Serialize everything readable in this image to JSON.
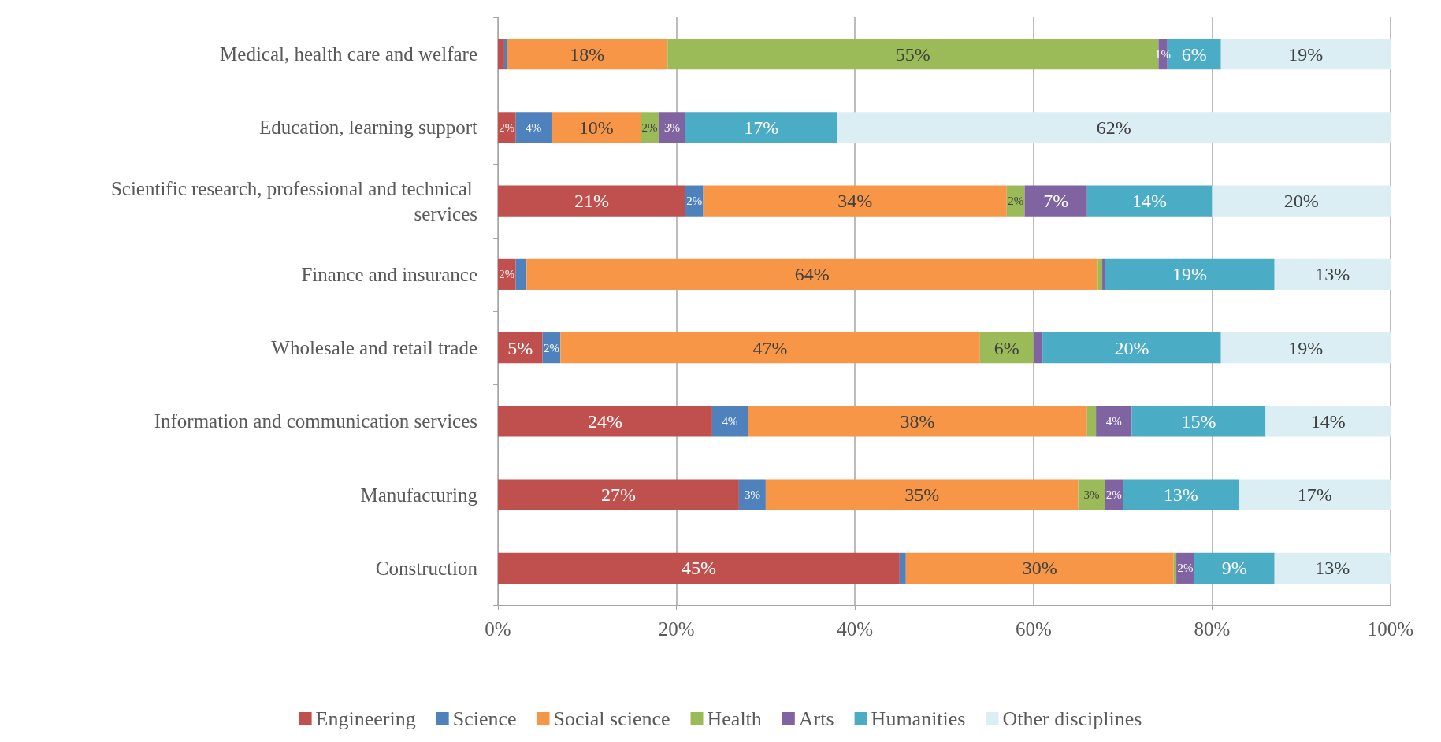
{
  "chart_data": {
    "type": "bar",
    "orientation": "horizontal",
    "stacked": true,
    "categories": [
      "Medical, health care and welfare",
      "Education, learning support",
      "Scientific research, professional and technical services",
      "Finance and insurance",
      "Wholesale and retail trade",
      "Information and communication services",
      "Manufacturing",
      "Construction"
    ],
    "series": [
      {
        "name": "Engineering",
        "color": "#c0504d",
        "values": [
          0.7,
          2,
          21,
          2,
          5,
          24,
          27,
          45
        ],
        "value_labels": [
          null,
          "2%",
          "21%",
          "2%",
          "5%",
          "24%",
          "27%",
          "45%"
        ]
      },
      {
        "name": "Science",
        "color": "#4f81bd",
        "values": [
          0.3,
          4,
          2,
          1.2,
          2,
          4,
          3,
          0.7
        ],
        "value_labels": [
          null,
          "4%",
          "2%",
          null,
          "2%",
          "4%",
          "3%",
          null
        ]
      },
      {
        "name": "Social science",
        "color": "#f79646",
        "values": [
          18,
          10,
          34,
          64,
          47,
          38,
          35,
          30
        ],
        "value_labels": [
          "18%",
          "10%",
          "34%",
          "64%",
          "47%",
          "38%",
          "35%",
          "30%"
        ]
      },
      {
        "name": "Health",
        "color": "#9bbb59",
        "values": [
          55,
          2,
          2,
          0.5,
          6,
          1,
          3,
          0.3
        ],
        "value_labels": [
          "55%",
          "2%",
          "2%",
          null,
          "6%",
          null,
          "3%",
          null
        ]
      },
      {
        "name": "Arts",
        "color": "#8064a2",
        "values": [
          1,
          3,
          7,
          0.3,
          1,
          4,
          2,
          2
        ],
        "value_labels": [
          "1%",
          "3%",
          "7%",
          null,
          null,
          "4%",
          "2%",
          "2%"
        ]
      },
      {
        "name": "Humanities",
        "color": "#4bacc6",
        "values": [
          6,
          17,
          14,
          19,
          20,
          15,
          13,
          9
        ],
        "value_labels": [
          "6%",
          "17%",
          "14%",
          "19%",
          "20%",
          "15%",
          "13%",
          "9%"
        ]
      },
      {
        "name": "Other disciplines",
        "color": "#dbeef4",
        "values": [
          19,
          62,
          20,
          13,
          19,
          14,
          17,
          13
        ],
        "value_labels": [
          "19%",
          "62%",
          "20%",
          "13%",
          "19%",
          "14%",
          "17%",
          "13%"
        ]
      }
    ],
    "xlim": [
      0,
      100
    ],
    "xticks": [
      {
        "value": 0,
        "label": "0%"
      },
      {
        "value": 20,
        "label": "20%"
      },
      {
        "value": 40,
        "label": "40%"
      },
      {
        "value": 60,
        "label": "60%"
      },
      {
        "value": 80,
        "label": "80%"
      },
      {
        "value": 100,
        "label": "100%"
      }
    ],
    "grid": "x",
    "legend": "bottom"
  }
}
